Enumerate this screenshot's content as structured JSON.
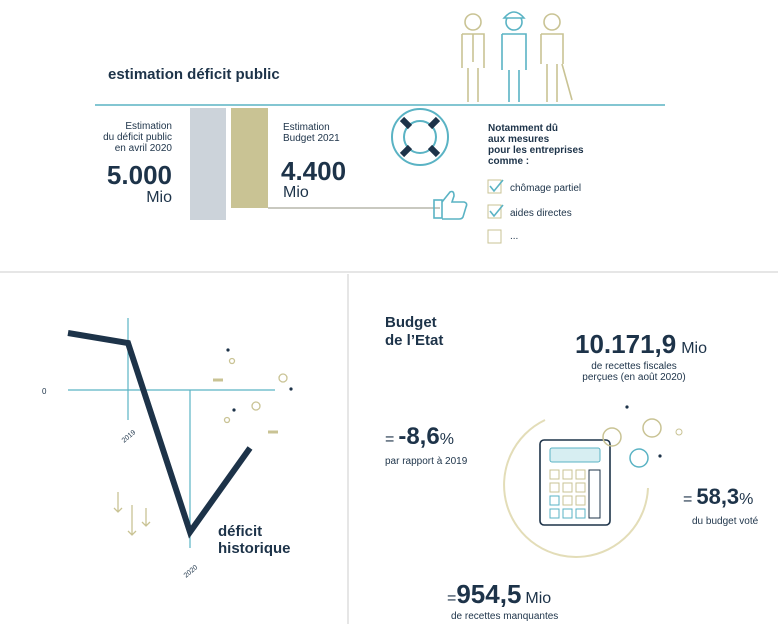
{
  "top": {
    "title": "estimation déficit public",
    "left": {
      "caption": [
        "Estimation",
        "du déficit public",
        "en avril 2020"
      ],
      "value": "5.000",
      "unit": "Mio"
    },
    "right": {
      "caption": [
        "Estimation",
        "Budget 2021"
      ],
      "value": "4.400",
      "unit": "Mio"
    },
    "note": [
      "Notamment dû",
      "aux mesures",
      "pour les entreprises",
      "comme :"
    ],
    "checklist": [
      "chômage partiel",
      "aides directes",
      "..."
    ]
  },
  "history": {
    "zero": "0",
    "x_labels": [
      "2019",
      "2020"
    ],
    "caption": [
      "déficit",
      "historique"
    ]
  },
  "budget": {
    "title": [
      "Budget",
      "de l’Etat"
    ],
    "revenue": {
      "value": "10.171,9",
      "unit": "Mio",
      "caption": [
        "de recettes fiscales",
        "perçues (en août 2020)"
      ]
    },
    "change": {
      "prefix": "=",
      "value": "-8,6",
      "unit": "%",
      "caption": "par rapport à 2019"
    },
    "share": {
      "prefix": "=",
      "value": "58,3",
      "unit": "%",
      "caption": "du budget voté"
    },
    "missing": {
      "prefix": "=",
      "value": "954,5",
      "unit": "Mio",
      "caption": "de recettes manquantes"
    }
  }
}
